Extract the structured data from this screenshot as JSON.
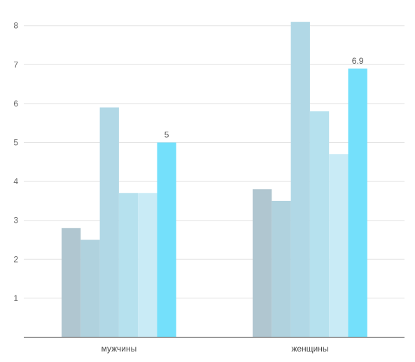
{
  "chart_data": {
    "type": "bar",
    "categories": [
      "мужчины",
      "женщины"
    ],
    "ylim": [
      0,
      8
    ],
    "yticks": [
      "1",
      "2",
      "3",
      "4",
      "5",
      "6",
      "7",
      "8"
    ],
    "grid": true,
    "series": [
      {
        "values": [
          2.8,
          3.8
        ],
        "color": "#b0c6d0"
      },
      {
        "values": [
          2.5,
          3.5
        ],
        "color": "#b0d2de"
      },
      {
        "values": [
          5.9,
          8.1
        ],
        "color": "#b1d8e6"
      },
      {
        "values": [
          3.7,
          5.8
        ],
        "color": "#b6e1ee"
      },
      {
        "values": [
          3.7,
          4.7
        ],
        "color": "#c9ebf6"
      },
      {
        "values": [
          5.0,
          6.9
        ],
        "color": "#74e0fb"
      }
    ],
    "data_labels": [
      {
        "series": 5,
        "category": 0,
        "text": "5"
      },
      {
        "series": 5,
        "category": 1,
        "text": "6.9"
      }
    ]
  }
}
